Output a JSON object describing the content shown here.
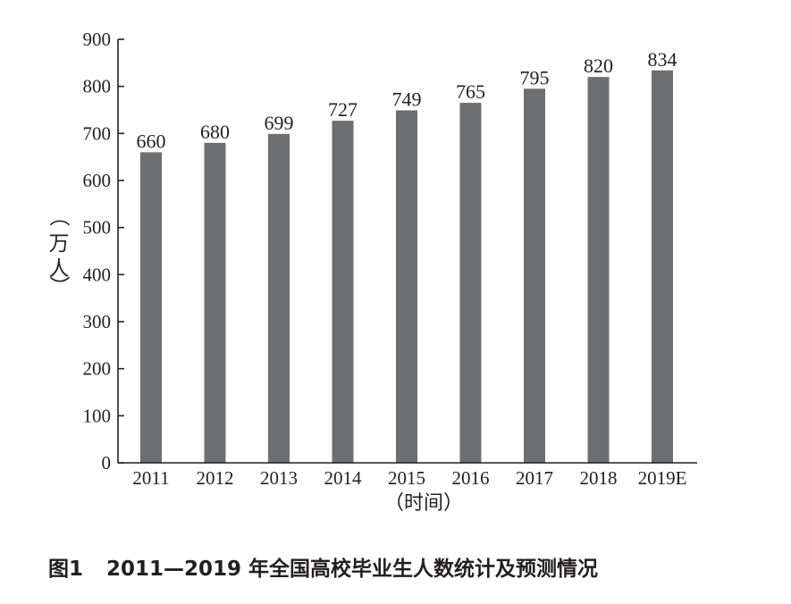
{
  "caption": {
    "figure_number": "图1",
    "text": "2011—2019 年全国高校毕业生人数统计及预测情况"
  },
  "chart_data": {
    "type": "bar",
    "categories": [
      "2011",
      "2012",
      "2013",
      "2014",
      "2015",
      "2016",
      "2017",
      "2018",
      "2019E"
    ],
    "values": [
      660,
      680,
      699,
      727,
      749,
      765,
      795,
      820,
      834
    ],
    "ylabel": "（万人）",
    "xlabel": "（时间）",
    "ylim": [
      0,
      900
    ],
    "yticks": [
      0,
      100,
      200,
      300,
      400,
      500,
      600,
      700,
      800,
      900
    ],
    "bar_color": "#6d6e71",
    "axis_color": "#231f20",
    "grid": false
  }
}
